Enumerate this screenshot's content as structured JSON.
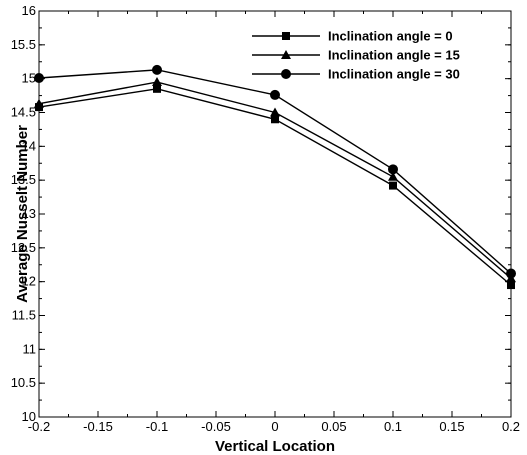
{
  "chart_data": {
    "type": "line",
    "title": "",
    "xlabel": "Vertical Location",
    "ylabel": "Average Nusselt Number",
    "xlim": [
      -0.2,
      0.2
    ],
    "ylim": [
      10,
      16
    ],
    "x_ticks": [
      "-0.2",
      "-0.15",
      "-0.1",
      "-0.05",
      "0",
      "0.05",
      "0.1",
      "0.15",
      "0.2"
    ],
    "x_tick_values": [
      -0.2,
      -0.15,
      -0.1,
      -0.05,
      0,
      0.05,
      0.1,
      0.15,
      0.2
    ],
    "y_ticks": [
      "10",
      "10.5",
      "11",
      "11.5",
      "12",
      "12.5",
      "13",
      "13.5",
      "14",
      "14.5",
      "15",
      "15.5",
      "16"
    ],
    "y_tick_values": [
      10,
      10.5,
      11,
      11.5,
      12,
      12.5,
      13,
      13.5,
      14,
      14.5,
      15,
      15.5,
      16
    ],
    "grid": false,
    "legend_position": "top-right",
    "x": [
      -0.2,
      -0.1,
      0,
      0.1,
      0.2
    ],
    "series": [
      {
        "name": "Inclination angle = 0",
        "marker": "square",
        "values": [
          14.58,
          14.85,
          14.4,
          13.42,
          11.95
        ]
      },
      {
        "name": "Inclination angle = 15",
        "marker": "triangle",
        "values": [
          14.63,
          14.95,
          14.5,
          13.55,
          12.05
        ]
      },
      {
        "name": "Inclination angle = 30",
        "marker": "circle",
        "values": [
          15.01,
          15.13,
          14.76,
          13.66,
          12.12
        ]
      }
    ],
    "line_color": "#000000"
  }
}
